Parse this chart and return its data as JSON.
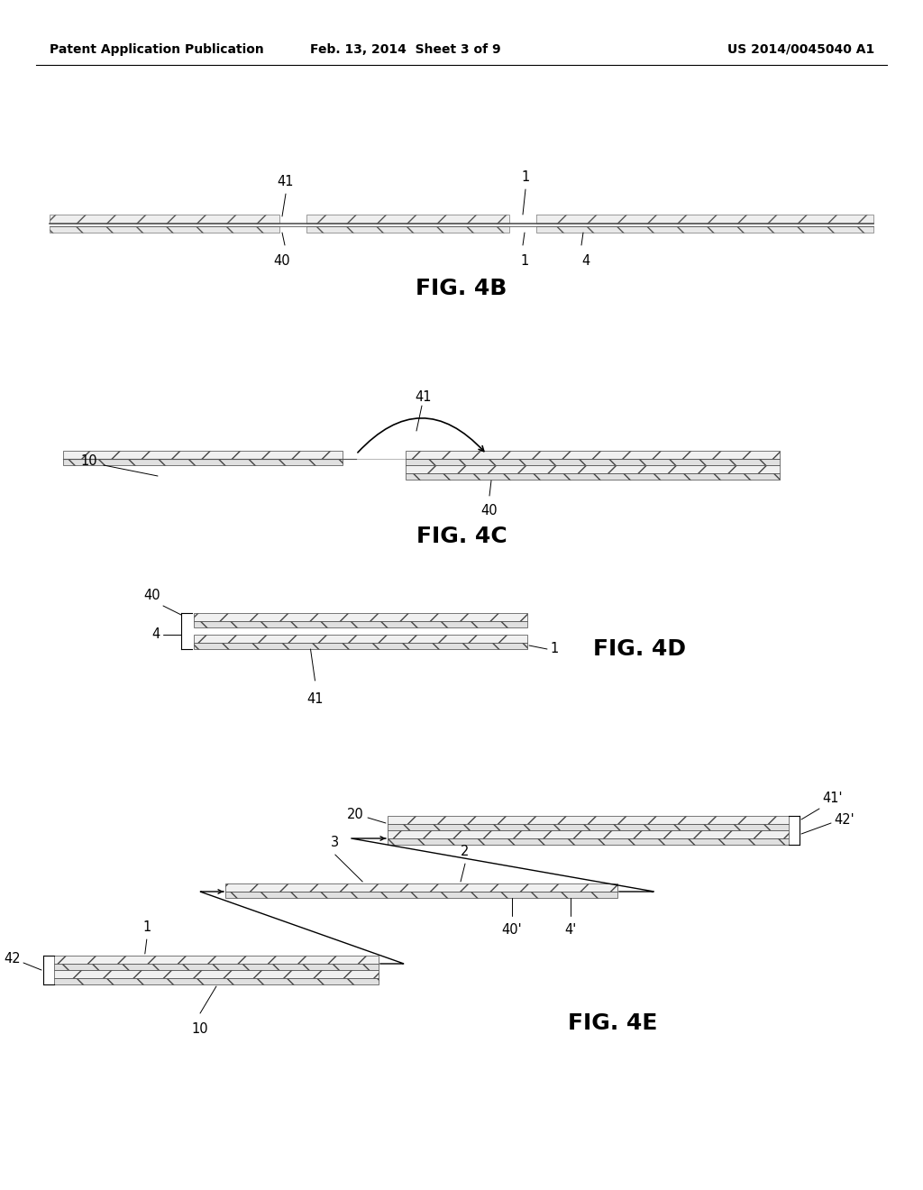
{
  "bg_color": "#ffffff",
  "header_left": "Patent Application Publication",
  "header_mid": "Feb. 13, 2014  Sheet 3 of 9",
  "header_right": "US 2014/0045040 A1",
  "fig_label_fontsize": 18,
  "annot_fontsize": 10.5,
  "header_fontsize": 10
}
